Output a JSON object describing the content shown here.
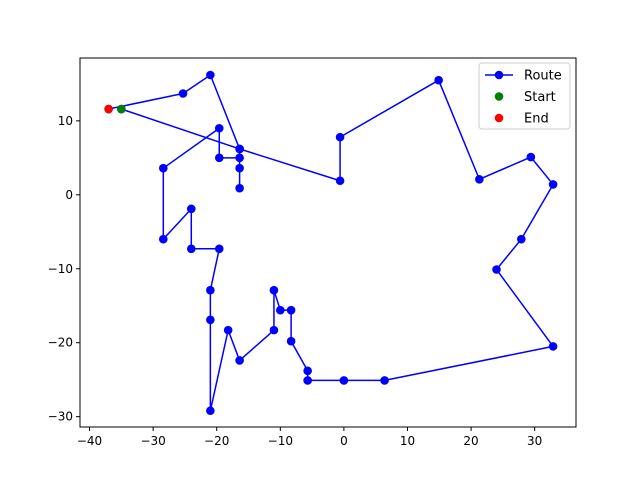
{
  "chart_data": {
    "type": "scatter",
    "title": "",
    "xlabel": "",
    "ylabel": "",
    "xlim": [
      -41.5,
      36.5
    ],
    "ylim": [
      -31.4,
      18.5
    ],
    "xticks": [
      -40,
      -30,
      -20,
      -10,
      0,
      10,
      20,
      30
    ],
    "yticks": [
      -30,
      -20,
      -10,
      0,
      10
    ],
    "grid": false,
    "legend": {
      "position": "top-right",
      "entries": [
        "Route",
        "Start",
        "End"
      ]
    },
    "series": [
      {
        "name": "Route",
        "color": "#0000ff",
        "style": "line-with-markers",
        "points": [
          [
            -35.0,
            11.6
          ],
          [
            -16.4,
            6.2
          ],
          [
            -0.6,
            1.9
          ],
          [
            -0.6,
            7.8
          ],
          [
            14.9,
            15.5
          ],
          [
            21.3,
            2.1
          ],
          [
            29.4,
            5.1
          ],
          [
            32.9,
            1.4
          ],
          [
            27.9,
            -6.0
          ],
          [
            24.0,
            -10.1
          ],
          [
            32.9,
            -20.5
          ],
          [
            6.4,
            -25.1
          ],
          [
            0.0,
            -25.1
          ],
          [
            -5.7,
            -25.1
          ],
          [
            -5.7,
            -23.8
          ],
          [
            -8.3,
            -19.8
          ],
          [
            -8.3,
            -15.6
          ],
          [
            -10.0,
            -15.6
          ],
          [
            -11.0,
            -12.9
          ],
          [
            -11.0,
            -18.3
          ],
          [
            -16.4,
            -22.4
          ],
          [
            -18.2,
            -18.3
          ],
          [
            -21.0,
            -29.2
          ],
          [
            -21.0,
            -16.9
          ],
          [
            -21.0,
            -12.9
          ],
          [
            -19.6,
            -7.3
          ],
          [
            -24.0,
            -7.3
          ],
          [
            -24.0,
            -1.9
          ],
          [
            -28.4,
            -6.0
          ],
          [
            -28.4,
            3.6
          ],
          [
            -19.6,
            9.0
          ],
          [
            -19.6,
            5.0
          ],
          [
            -16.4,
            5.0
          ],
          [
            -16.4,
            3.6
          ],
          [
            -16.4,
            0.9
          ],
          [
            -16.4,
            6.2
          ],
          [
            -21.0,
            16.2
          ],
          [
            -25.3,
            13.7
          ],
          [
            -37.0,
            11.6
          ]
        ]
      },
      {
        "name": "Start",
        "color": "#008000",
        "style": "marker",
        "points": [
          [
            -35.0,
            11.6
          ]
        ]
      },
      {
        "name": "End",
        "color": "#ff0000",
        "style": "marker",
        "points": [
          [
            -37.0,
            11.6
          ]
        ]
      }
    ]
  }
}
